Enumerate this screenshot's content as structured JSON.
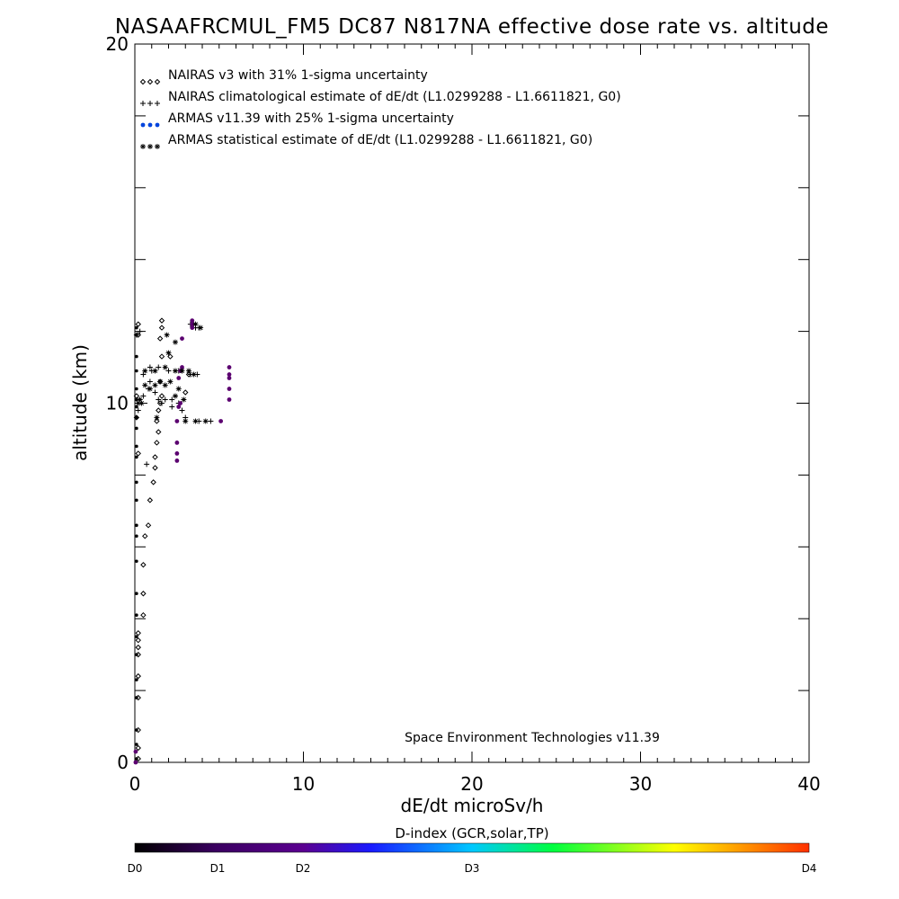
{
  "chart_data": {
    "type": "scatter",
    "title": "NASAAFRCMUL_FM5 DC87 N817NA effective dose rate vs. altitude",
    "xlabel": "dE/dt microSv/h",
    "ylabel": "altitude (km)",
    "xlim": [
      0,
      40
    ],
    "ylim": [
      0,
      20
    ],
    "x_ticks": [
      "0",
      "10",
      "20",
      "30",
      "40"
    ],
    "y_ticks": [
      "0",
      "10",
      "20"
    ],
    "legend_position": "top-left",
    "credit": "Space Environment Technologies v11.39",
    "colorbar": {
      "title": "D-index (GCR,solar,TP)",
      "labels": [
        "D0",
        "D1",
        "D2",
        "D3",
        "D4"
      ],
      "label_values": [
        0,
        1,
        2,
        3,
        4
      ],
      "colors": [
        "#000000",
        "#5b0090",
        "#1a1aff",
        "#00c8ff",
        "#00ff40",
        "#ffff00",
        "#ff3000"
      ]
    },
    "series": [
      {
        "name": "NAIRAS v3 with 31% 1-sigma uncertainty",
        "marker": "diamond",
        "color": "#000000",
        "points": [
          [
            0.2,
            0.1
          ],
          [
            0.2,
            0.4
          ],
          [
            0.2,
            0.9
          ],
          [
            0.2,
            1.8
          ],
          [
            0.2,
            2.4
          ],
          [
            0.2,
            3.0
          ],
          [
            0.2,
            3.2
          ],
          [
            0.2,
            3.4
          ],
          [
            0.2,
            3.6
          ],
          [
            0.5,
            4.1
          ],
          [
            0.5,
            4.7
          ],
          [
            0.5,
            5.5
          ],
          [
            0.6,
            6.3
          ],
          [
            0.8,
            6.6
          ],
          [
            0.9,
            7.3
          ],
          [
            1.1,
            7.8
          ],
          [
            1.2,
            8.2
          ],
          [
            1.2,
            8.5
          ],
          [
            1.3,
            8.9
          ],
          [
            1.4,
            9.2
          ],
          [
            1.3,
            9.5
          ],
          [
            1.4,
            9.8
          ],
          [
            1.5,
            10.0
          ],
          [
            1.6,
            10.2
          ],
          [
            1.5,
            10.6
          ],
          [
            1.6,
            11.3
          ],
          [
            1.5,
            11.8
          ],
          [
            1.6,
            12.1
          ],
          [
            1.6,
            12.3
          ],
          [
            2.1,
            11.3
          ],
          [
            3.0,
            10.3
          ],
          [
            3.2,
            10.8
          ],
          [
            0.2,
            12.2
          ],
          [
            0.2,
            11.9
          ],
          [
            0.1,
            10.2
          ],
          [
            0.1,
            9.6
          ],
          [
            0.2,
            8.6
          ]
        ]
      },
      {
        "name": "NAIRAS climatological estimate of dE/dt (L1.0299288 - L1.6611821, G0)",
        "marker": "plus",
        "color": "#000000",
        "points": [
          [
            0.1,
            11.9
          ],
          [
            0.3,
            12.0
          ],
          [
            0.3,
            10.1
          ],
          [
            0.5,
            10.2
          ],
          [
            0.8,
            10.4
          ],
          [
            0.9,
            10.6
          ],
          [
            1.2,
            10.3
          ],
          [
            1.4,
            10.1
          ],
          [
            1.6,
            10.0
          ],
          [
            1.8,
            10.1
          ],
          [
            2.2,
            10.1
          ],
          [
            2.6,
            10.0
          ],
          [
            3.0,
            9.6
          ],
          [
            3.8,
            9.5
          ],
          [
            4.5,
            9.5
          ],
          [
            0.9,
            11.0
          ],
          [
            1.4,
            11.0
          ],
          [
            2.0,
            10.9
          ],
          [
            2.6,
            10.9
          ],
          [
            3.3,
            10.8
          ],
          [
            3.7,
            10.8
          ],
          [
            0.7,
            8.3
          ],
          [
            0.2,
            9.8
          ],
          [
            0.5,
            10.8
          ],
          [
            1.0,
            10.9
          ],
          [
            3.3,
            12.2
          ],
          [
            3.6,
            12.1
          ],
          [
            3.8,
            12.1
          ],
          [
            2.8,
            9.8
          ],
          [
            2.2,
            9.9
          ]
        ]
      },
      {
        "name": "ARMAS v11.39 with 25% 1-sigma uncertainty",
        "marker": "dot",
        "color": "#0044dd",
        "points": [
          [
            2.5,
            8.4
          ],
          [
            2.5,
            8.6
          ],
          [
            2.5,
            8.9
          ],
          [
            2.5,
            9.5
          ],
          [
            2.6,
            9.9
          ],
          [
            2.7,
            10.0
          ],
          [
            2.6,
            10.7
          ],
          [
            2.7,
            10.9
          ],
          [
            2.8,
            11.0
          ],
          [
            3.4,
            12.1
          ],
          [
            3.4,
            12.2
          ],
          [
            3.4,
            12.3
          ],
          [
            5.1,
            9.5
          ],
          [
            5.6,
            10.1
          ],
          [
            5.6,
            10.4
          ],
          [
            5.6,
            10.7
          ],
          [
            5.6,
            10.8
          ],
          [
            5.6,
            11.0
          ],
          [
            2.8,
            11.8
          ],
          [
            0.05,
            0.0
          ],
          [
            0.05,
            0.3
          ]
        ]
      },
      {
        "name": "ARMAS statistical estimate of dE/dt (L1.0299288 - L1.6611821, G0)",
        "marker": "asterisk",
        "color": "#000000",
        "points": [
          [
            0.2,
            10.0
          ],
          [
            0.3,
            10.1
          ],
          [
            0.4,
            10.0
          ],
          [
            0.6,
            10.5
          ],
          [
            0.9,
            10.4
          ],
          [
            1.2,
            10.5
          ],
          [
            1.5,
            10.6
          ],
          [
            1.8,
            10.5
          ],
          [
            2.1,
            10.6
          ],
          [
            2.4,
            10.2
          ],
          [
            2.9,
            10.1
          ],
          [
            0.6,
            10.9
          ],
          [
            1.2,
            10.9
          ],
          [
            1.8,
            11.0
          ],
          [
            2.4,
            10.9
          ],
          [
            2.8,
            10.9
          ],
          [
            3.2,
            10.9
          ],
          [
            3.5,
            10.8
          ],
          [
            3.9,
            12.1
          ],
          [
            3.6,
            12.2
          ],
          [
            2.4,
            11.7
          ],
          [
            1.9,
            11.9
          ],
          [
            3.0,
            9.5
          ],
          [
            3.6,
            9.5
          ],
          [
            4.2,
            9.5
          ],
          [
            2.0,
            11.4
          ],
          [
            1.3,
            9.6
          ],
          [
            2.6,
            10.4
          ]
        ]
      }
    ],
    "dindex_points": [
      [
        0.1,
        0.1
      ],
      [
        0.1,
        0.5
      ],
      [
        0.1,
        0.9
      ],
      [
        0.1,
        1.8
      ],
      [
        0.1,
        2.3
      ],
      [
        0.1,
        3.0
      ],
      [
        0.1,
        3.5
      ],
      [
        0.1,
        4.1
      ],
      [
        0.1,
        4.7
      ],
      [
        0.1,
        5.6
      ],
      [
        0.1,
        6.3
      ],
      [
        0.1,
        6.6
      ],
      [
        0.1,
        7.3
      ],
      [
        0.1,
        7.8
      ],
      [
        0.1,
        8.5
      ],
      [
        0.1,
        8.8
      ],
      [
        0.1,
        9.3
      ],
      [
        0.1,
        9.6
      ],
      [
        0.1,
        9.9
      ],
      [
        0.1,
        10.1
      ],
      [
        0.1,
        10.4
      ],
      [
        0.1,
        10.9
      ],
      [
        0.1,
        11.3
      ],
      [
        0.1,
        11.9
      ],
      [
        0.1,
        12.1
      ]
    ]
  }
}
